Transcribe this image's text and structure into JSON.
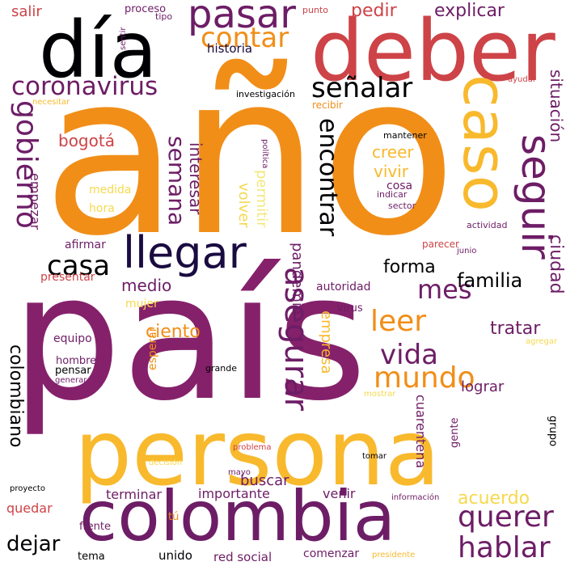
{
  "palette": {
    "black": "#000004",
    "navy": "#1a0b40",
    "purple": "#6d1d66",
    "plum": "#85216b",
    "red": "#cd4347",
    "orange": "#f18e18",
    "amber": "#f8b92d",
    "yellow": "#f6d94e",
    "pale": "#f2e87a"
  },
  "words": [
    {
      "text": "año",
      "color": "orange"
    },
    {
      "text": "país",
      "color": "plum"
    },
    {
      "text": "persona",
      "color": "amber"
    },
    {
      "text": "colombia",
      "color": "purple"
    },
    {
      "text": "deber",
      "color": "red"
    },
    {
      "text": "día",
      "color": "black"
    },
    {
      "text": "caso",
      "color": "amber"
    },
    {
      "text": "llegar",
      "color": "navy"
    },
    {
      "text": "seguir",
      "color": "purple"
    },
    {
      "text": "pasar",
      "color": "purple"
    },
    {
      "text": "coronavirus",
      "color": "purple"
    },
    {
      "text": "gobierno",
      "color": "purple"
    },
    {
      "text": "contar",
      "color": "orange"
    },
    {
      "text": "señalar",
      "color": "black"
    },
    {
      "text": "encontrar",
      "color": "black"
    },
    {
      "text": "asegurar",
      "color": "purple"
    },
    {
      "text": "semana",
      "color": "purple"
    },
    {
      "text": "casa",
      "color": "black"
    },
    {
      "text": "mundo",
      "color": "orange"
    },
    {
      "text": "vida",
      "color": "purple"
    },
    {
      "text": "querer",
      "color": "purple"
    },
    {
      "text": "hablar",
      "color": "purple"
    },
    {
      "text": "leer",
      "color": "orange"
    },
    {
      "text": "mes",
      "color": "purple"
    },
    {
      "text": "dejar",
      "color": "black"
    },
    {
      "text": "colombiano",
      "color": "black"
    },
    {
      "text": "explicar",
      "color": "purple"
    },
    {
      "text": "pedir",
      "color": "red"
    },
    {
      "text": "situación",
      "color": "purple"
    },
    {
      "text": "ciudad",
      "color": "purple"
    },
    {
      "text": "familia",
      "color": "black"
    },
    {
      "text": "forma",
      "color": "black"
    },
    {
      "text": "tratar",
      "color": "purple"
    },
    {
      "text": "acuerdo",
      "color": "yellow"
    },
    {
      "text": "ciento",
      "color": "orange"
    },
    {
      "text": "medio",
      "color": "purple"
    },
    {
      "text": "bogotá",
      "color": "red"
    },
    {
      "text": "creer",
      "color": "amber"
    },
    {
      "text": "vivir",
      "color": "amber"
    },
    {
      "text": "interesar",
      "color": "purple"
    },
    {
      "text": "pandemia",
      "color": "purple"
    },
    {
      "text": "empresa",
      "color": "amber"
    },
    {
      "text": "volver",
      "color": "yellow"
    },
    {
      "text": "permitir",
      "color": "pale"
    },
    {
      "text": "salir",
      "color": "red"
    },
    {
      "text": "historia",
      "color": "navy"
    },
    {
      "text": "empezar",
      "color": "purple"
    },
    {
      "text": "lograr",
      "color": "purple"
    },
    {
      "text": "cuarentena",
      "color": "purple"
    },
    {
      "text": "buscar",
      "color": "purple"
    },
    {
      "text": "terminar",
      "color": "purple"
    },
    {
      "text": "importante",
      "color": "purple"
    },
    {
      "text": "quedar",
      "color": "red"
    },
    {
      "text": "venir",
      "color": "purple"
    },
    {
      "text": "unido",
      "color": "black"
    },
    {
      "text": "red social",
      "color": "purple"
    },
    {
      "text": "comenzar",
      "color": "purple"
    },
    {
      "text": "esperar",
      "color": "orange"
    },
    {
      "text": "afirmar",
      "color": "purple"
    },
    {
      "text": "medida",
      "color": "yellow"
    },
    {
      "text": "hora",
      "color": "yellow"
    },
    {
      "text": "cosa",
      "color": "purple"
    },
    {
      "text": "autoridad",
      "color": "purple"
    },
    {
      "text": "mujer",
      "color": "yellow"
    },
    {
      "text": "presentar",
      "color": "red"
    },
    {
      "text": "equipo",
      "color": "purple"
    },
    {
      "text": "hombre",
      "color": "purple"
    },
    {
      "text": "pensar",
      "color": "black"
    },
    {
      "text": "tema",
      "color": "black"
    },
    {
      "text": "frente",
      "color": "purple"
    },
    {
      "text": "tú",
      "color": "orange"
    },
    {
      "text": "gente",
      "color": "purple"
    },
    {
      "text": "grupo",
      "color": "black"
    },
    {
      "text": "virus",
      "color": "purple"
    },
    {
      "text": "parecer",
      "color": "red"
    },
    {
      "text": "recibir",
      "color": "orange"
    },
    {
      "text": "mantener",
      "color": "black"
    },
    {
      "text": "indicar",
      "color": "purple"
    },
    {
      "text": "sector",
      "color": "purple"
    },
    {
      "text": "actividad",
      "color": "purple"
    },
    {
      "text": "junio",
      "color": "purple"
    },
    {
      "text": "proceso",
      "color": "purple"
    },
    {
      "text": "tipo",
      "color": "purple"
    },
    {
      "text": "sentir",
      "color": "purple"
    },
    {
      "text": "punto",
      "color": "red"
    },
    {
      "text": "investigación",
      "color": "black"
    },
    {
      "text": "necesitar",
      "color": "amber"
    },
    {
      "text": "ayudar",
      "color": "red"
    },
    {
      "text": "política",
      "color": "purple"
    },
    {
      "text": "grande",
      "color": "black"
    },
    {
      "text": "generar",
      "color": "purple"
    },
    {
      "text": "mostrar",
      "color": "yellow"
    },
    {
      "text": "agregar",
      "color": "yellow"
    },
    {
      "text": "problema",
      "color": "red"
    },
    {
      "text": "decisión",
      "color": "yellow"
    },
    {
      "text": "mayo",
      "color": "purple"
    },
    {
      "text": "tomar",
      "color": "black"
    },
    {
      "text": "proyecto",
      "color": "black"
    },
    {
      "text": "información",
      "color": "purple"
    },
    {
      "text": "presidente",
      "color": "amber"
    }
  ]
}
